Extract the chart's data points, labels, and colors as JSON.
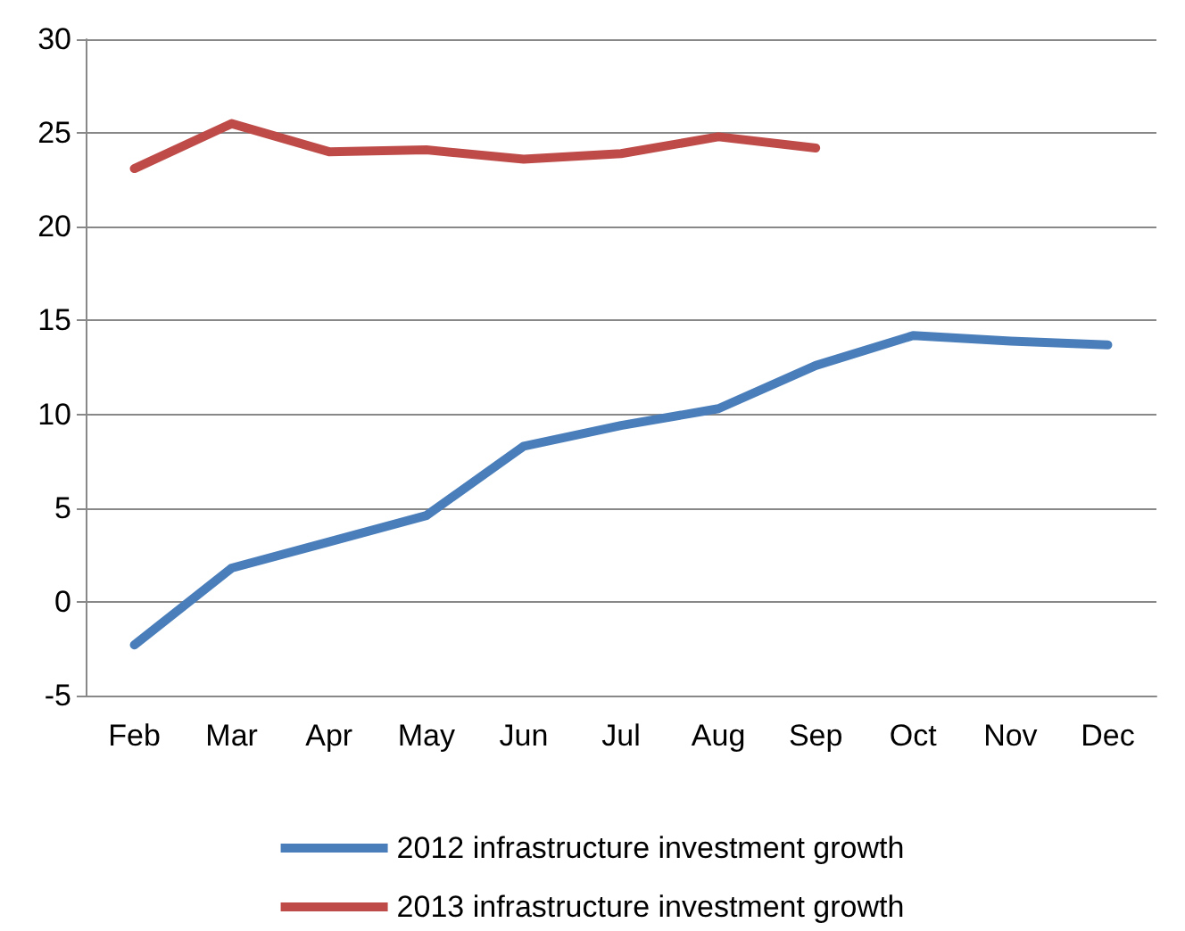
{
  "chart_data": {
    "type": "line",
    "categories": [
      "Feb",
      "Mar",
      "Apr",
      "May",
      "Jun",
      "Jul",
      "Aug",
      "Sep",
      "Oct",
      "Nov",
      "Dec"
    ],
    "series": [
      {
        "name": "2012 infrastructure investment growth",
        "color": "#4a7ebb",
        "values": [
          -2.3,
          1.8,
          3.2,
          4.6,
          8.3,
          9.4,
          10.3,
          12.6,
          14.2,
          13.9,
          13.7
        ]
      },
      {
        "name": "2013 infrastructure investment growth",
        "color": "#be4b48",
        "values": [
          23.1,
          25.5,
          24.0,
          24.1,
          23.6,
          23.9,
          24.8,
          24.2,
          null,
          null,
          null
        ]
      }
    ],
    "ylim": [
      -5,
      30
    ],
    "yticks": [
      -5,
      0,
      5,
      10,
      15,
      20,
      25,
      30
    ],
    "grid": "y",
    "legend": "bottom",
    "marker": "none",
    "line_style": "solid"
  }
}
